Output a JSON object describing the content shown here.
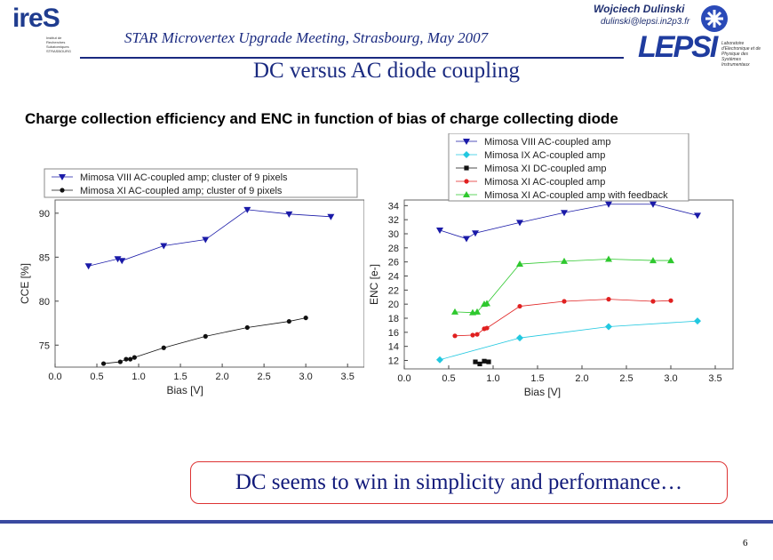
{
  "header": {
    "logo_left": "ireS",
    "logo_left_sub": "Institut de Recherches Subatomiques STRASBOURG",
    "meeting": "STAR Microvertex Upgrade Meeting, Strasbourg, May 2007",
    "author": "Wojciech Dulinski",
    "email": "dulinski@lepsi.in2p3.fr",
    "logo_right": "LEPSI",
    "logo_right_sub": "Laboratoire d'Electronique et de Physique des Systèmes Instrumentaux"
  },
  "slide": {
    "title": "DC versus AC diode coupling",
    "subtitle": "Charge collection efficiency and ENC in function of bias of charge collecting diode",
    "conclusion": "DC seems to win in simplicity and performance…",
    "page_number": "6"
  },
  "colors": {
    "accent": "#1a2a80",
    "conclusion_border": "#dd3333"
  },
  "chart_data": [
    {
      "type": "scatter",
      "xlabel": "Bias [V]",
      "ylabel": "CCE [%]",
      "xlim": [
        0.0,
        3.7
      ],
      "ylim": [
        72.5,
        91.5
      ],
      "xticks": [
        "0.0",
        "0.5",
        "1.0",
        "1.5",
        "2.0",
        "2.5",
        "3.0",
        "3.5"
      ],
      "yticks": [
        "75",
        "80",
        "85",
        "90"
      ],
      "legend_position": "top",
      "series": [
        {
          "name": "Mimosa VIII AC-coupled amp;  cluster of 9 pixels",
          "color": "#1a1aa8",
          "marker": "triangle-down",
          "connected": true,
          "x": [
            0.4,
            0.75,
            0.8,
            1.3,
            1.8,
            2.3,
            2.8,
            3.3
          ],
          "y": [
            84.0,
            84.8,
            84.6,
            86.3,
            87.0,
            90.4,
            89.9,
            89.6
          ]
        },
        {
          "name": "Mimosa XI AC-coupled amp; cluster of 9 pixels",
          "color": "#111111",
          "marker": "circle",
          "connected": true,
          "x": [
            0.58,
            0.78,
            0.85,
            0.9,
            0.95,
            1.3,
            1.8,
            2.3,
            2.8,
            3.0
          ],
          "y": [
            72.9,
            73.1,
            73.4,
            73.4,
            73.6,
            74.7,
            76.0,
            77.0,
            77.7,
            78.1
          ]
        }
      ]
    },
    {
      "type": "scatter",
      "xlabel": "Bias [V]",
      "ylabel": "ENC [e-]",
      "xlim": [
        0.0,
        3.7
      ],
      "ylim": [
        10.8,
        34.8
      ],
      "xticks": [
        "0.0",
        "0.5",
        "1.0",
        "1.5",
        "2.0",
        "2.5",
        "3.0",
        "3.5"
      ],
      "yticks": [
        "12",
        "14",
        "16",
        "18",
        "20",
        "22",
        "24",
        "26",
        "28",
        "30",
        "32",
        "34"
      ],
      "legend_position": "top",
      "series": [
        {
          "name": "Mimosa VIII AC-coupled amp",
          "color": "#1a1aa8",
          "marker": "triangle-down",
          "connected": true,
          "x": [
            0.4,
            0.7,
            0.8,
            1.3,
            1.8,
            2.3,
            2.8,
            3.3
          ],
          "y": [
            30.5,
            29.3,
            30.1,
            31.6,
            33.0,
            34.2,
            34.2,
            32.6
          ]
        },
        {
          "name": "Mimosa IX AC-coupled amp",
          "color": "#22c8e0",
          "marker": "diamond",
          "connected": true,
          "x": [
            0.4,
            1.3,
            2.3,
            3.3
          ],
          "y": [
            12.1,
            15.2,
            16.8,
            17.6
          ]
        },
        {
          "name": "Mimosa XI DC-coupled amp",
          "color": "#111111",
          "marker": "square",
          "connected": true,
          "x": [
            0.8,
            0.85,
            0.9,
            0.95
          ],
          "y": [
            11.8,
            11.5,
            11.9,
            11.8
          ]
        },
        {
          "name": "Mimosa XI AC-coupled amp",
          "color": "#e02020",
          "marker": "circle",
          "connected": true,
          "x": [
            0.57,
            0.77,
            0.82,
            0.9,
            0.93,
            1.3,
            1.8,
            2.3,
            2.8,
            3.0
          ],
          "y": [
            15.5,
            15.6,
            15.7,
            16.5,
            16.6,
            19.7,
            20.4,
            20.7,
            20.4,
            20.5
          ]
        },
        {
          "name": "Mimosa XI AC-coupled amp with feedback",
          "color": "#2ec82e",
          "marker": "triangle-up",
          "connected": true,
          "x": [
            0.57,
            0.77,
            0.82,
            0.9,
            0.93,
            1.3,
            1.8,
            2.3,
            2.8,
            3.0
          ],
          "y": [
            18.9,
            18.8,
            18.9,
            20.0,
            20.1,
            25.7,
            26.1,
            26.4,
            26.2,
            26.2
          ]
        }
      ]
    }
  ]
}
